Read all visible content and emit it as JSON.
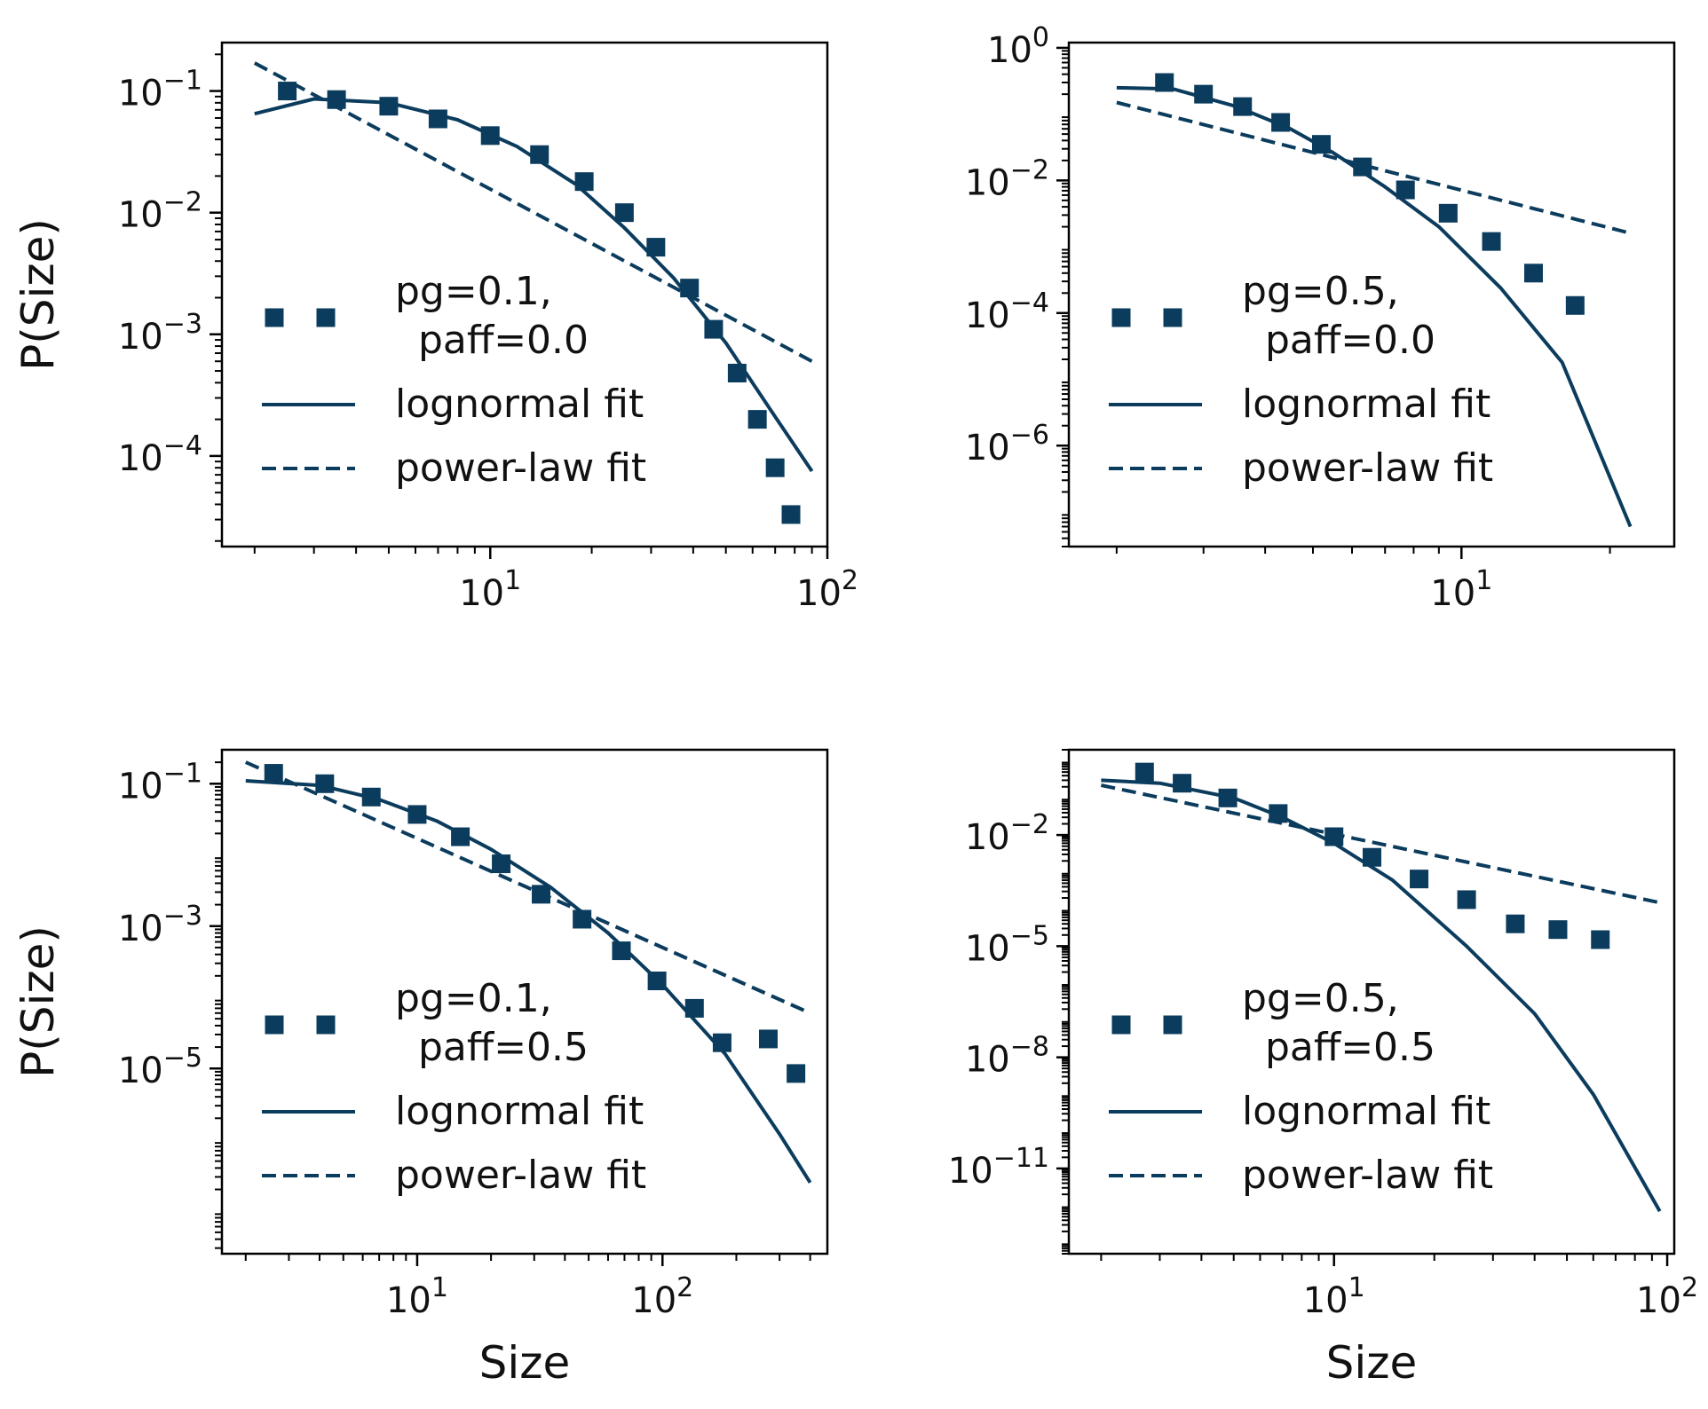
{
  "colors": {
    "series": "#0b3c5d",
    "axis": "#000000"
  },
  "chart_data": [
    {
      "type": "line",
      "position": "top-left",
      "xscale": "log",
      "yscale": "log",
      "xlim": [
        1.6,
        100
      ],
      "ylim": [
        1.8e-05,
        0.25
      ],
      "xticks": [
        {
          "value": 10,
          "label": "10^1"
        },
        {
          "value": 100,
          "label": "10^2"
        }
      ],
      "yticks": [
        {
          "value": 0.1,
          "label": "10^-1"
        },
        {
          "value": 0.01,
          "label": "10^-2"
        },
        {
          "value": 0.001,
          "label": "10^-3"
        },
        {
          "value": 0.0001,
          "label": "10^-4"
        }
      ],
      "xlabel": "",
      "ylabel": "P(Size)",
      "legend": {
        "placement": "lower-left",
        "entries": [
          "pg=0.1,\n paff=0.0",
          "lognormal fit",
          "power-law fit"
        ]
      },
      "series": [
        {
          "name": "pg=0.1,\n paff=0.0",
          "style": "dotted-square",
          "x": [
            2.5,
            3.5,
            5,
            7,
            10,
            14,
            19,
            25,
            31,
            39,
            46,
            54,
            62,
            70,
            78
          ],
          "y": [
            0.1,
            0.085,
            0.075,
            0.059,
            0.043,
            0.03,
            0.018,
            0.01,
            0.0052,
            0.0024,
            0.0011,
            0.00048,
            0.0002,
            8e-05,
            3.3e-05
          ]
        },
        {
          "name": "lognormal fit",
          "style": "solid",
          "x": [
            2,
            3,
            5,
            8,
            12,
            18,
            25,
            35,
            50,
            70,
            90
          ],
          "y": [
            0.065,
            0.086,
            0.08,
            0.058,
            0.035,
            0.017,
            0.0075,
            0.0029,
            0.00085,
            0.00021,
            7.5e-05
          ]
        },
        {
          "name": "power-law fit",
          "style": "dashed",
          "x": [
            2,
            90
          ],
          "y": [
            0.17,
            0.0006
          ]
        }
      ]
    },
    {
      "type": "line",
      "position": "top-right",
      "xscale": "log",
      "yscale": "log",
      "xlim": [
        1.6,
        27
      ],
      "ylim": [
        3e-08,
        1.2
      ],
      "xticks": [
        {
          "value": 10,
          "label": "10^1"
        }
      ],
      "yticks": [
        {
          "value": 1,
          "label": "10^0"
        },
        {
          "value": 0.01,
          "label": "10^-2"
        },
        {
          "value": 0.0001,
          "label": "10^-4"
        },
        {
          "value": 1e-06,
          "label": "10^-6"
        }
      ],
      "xlabel": "",
      "ylabel": "",
      "legend": {
        "placement": "lower-left",
        "entries": [
          "pg=0.5,\n paff=0.0",
          "lognormal fit",
          "power-law fit"
        ]
      },
      "series": [
        {
          "name": "pg=0.5,\n paff=0.0",
          "style": "dotted-square",
          "x": [
            2.5,
            3.0,
            3.6,
            4.3,
            5.2,
            6.3,
            7.7,
            9.4,
            11.5,
            14,
            17
          ],
          "y": [
            0.3,
            0.2,
            0.13,
            0.075,
            0.035,
            0.016,
            0.0072,
            0.0032,
            0.0012,
            0.0004,
            0.00013
          ]
        },
        {
          "name": "lognormal fit",
          "style": "solid",
          "x": [
            2,
            2.6,
            3.5,
            4.5,
            5.5,
            7,
            9,
            12,
            16,
            22
          ],
          "y": [
            0.25,
            0.24,
            0.13,
            0.06,
            0.026,
            0.008,
            0.002,
            0.00024,
            1.8e-05,
            6e-08
          ]
        },
        {
          "name": "power-law fit",
          "style": "dashed",
          "x": [
            2,
            22
          ],
          "y": [
            0.15,
            0.0016
          ]
        }
      ]
    },
    {
      "type": "line",
      "position": "bottom-left",
      "xscale": "log",
      "yscale": "log",
      "xlim": [
        1.6,
        470
      ],
      "ylim": [
        2.5e-08,
        0.3
      ],
      "xticks": [
        {
          "value": 10,
          "label": "10^1"
        },
        {
          "value": 100,
          "label": "10^2"
        }
      ],
      "yticks": [
        {
          "value": 0.1,
          "label": "10^-1"
        },
        {
          "value": 0.001,
          "label": "10^-3"
        },
        {
          "value": 1e-05,
          "label": "10^-5"
        }
      ],
      "xlabel": "Size",
      "ylabel": "P(Size)",
      "legend": {
        "placement": "lower-left",
        "entries": [
          "pg=0.1,\n paff=0.5",
          "lognormal fit",
          "power-law fit"
        ]
      },
      "series": [
        {
          "name": "pg=0.1,\n paff=0.5",
          "style": "dotted-square",
          "x": [
            2.6,
            4.2,
            6.5,
            10,
            15,
            22,
            32,
            47,
            68,
            95,
            135,
            175,
            270,
            350
          ],
          "y": [
            0.14,
            0.1,
            0.065,
            0.037,
            0.018,
            0.0075,
            0.0028,
            0.00125,
            0.00045,
            0.00017,
            7e-05,
            2.3e-05,
            2.6e-05,
            8.5e-06
          ]
        },
        {
          "name": "lognormal fit",
          "style": "solid",
          "x": [
            2,
            4,
            7,
            12,
            20,
            35,
            60,
            100,
            180,
            300,
            400
          ],
          "y": [
            0.11,
            0.095,
            0.06,
            0.03,
            0.012,
            0.0035,
            0.0008,
            0.00015,
            1.6e-05,
            1.2e-06,
            2.5e-07
          ]
        },
        {
          "name": "power-law fit",
          "style": "dashed",
          "x": [
            2,
            400
          ],
          "y": [
            0.2,
            6e-05
          ]
        }
      ]
    },
    {
      "type": "line",
      "position": "bottom-right",
      "xscale": "log",
      "yscale": "log",
      "xlim": [
        1.6,
        105
      ],
      "ylim": [
        5e-14,
        2
      ],
      "xticks": [
        {
          "value": 10,
          "label": "10^1"
        },
        {
          "value": 100,
          "label": "10^2"
        }
      ],
      "yticks": [
        {
          "value": 0.01,
          "label": "10^-2"
        },
        {
          "value": 1e-05,
          "label": "10^-5"
        },
        {
          "value": 1e-08,
          "label": "10^-8"
        },
        {
          "value": 1e-11,
          "label": "10^-11"
        }
      ],
      "xlabel": "Size",
      "ylabel": "",
      "legend": {
        "placement": "lower-left",
        "entries": [
          "pg=0.5,\n paff=0.5",
          "lognormal fit",
          "power-law fit"
        ]
      },
      "series": [
        {
          "name": "pg=0.5,\n paff=0.5",
          "style": "dotted-square",
          "x": [
            2.7,
            3.5,
            4.8,
            6.8,
            10,
            13,
            18,
            25,
            35,
            47,
            63
          ],
          "y": [
            0.5,
            0.25,
            0.1,
            0.038,
            0.009,
            0.0025,
            0.00065,
            0.00018,
            4e-05,
            2.8e-05,
            1.5e-05
          ]
        },
        {
          "name": "lognormal fit",
          "style": "solid",
          "x": [
            2,
            3,
            5,
            7,
            10,
            15,
            25,
            40,
            60,
            95
          ],
          "y": [
            0.3,
            0.25,
            0.1,
            0.03,
            0.006,
            0.0006,
            1e-05,
            1.5e-07,
            1e-09,
            7e-13
          ]
        },
        {
          "name": "power-law fit",
          "style": "dashed",
          "x": [
            2,
            95
          ],
          "y": [
            0.22,
            0.00015
          ]
        }
      ]
    }
  ]
}
